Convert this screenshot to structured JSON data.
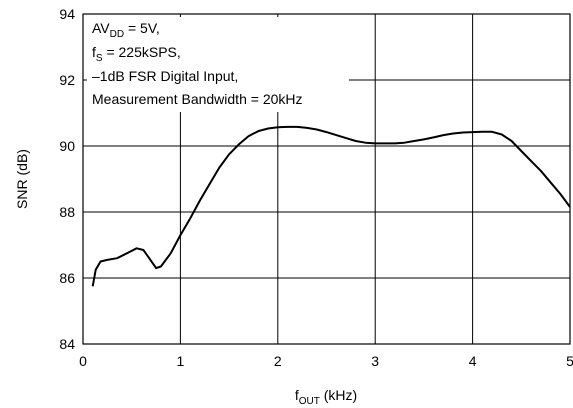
{
  "chart_data": {
    "type": "line",
    "title": "",
    "xlabel": {
      "base": "f",
      "sub": "OUT",
      "rest": " (kHz)"
    },
    "ylabel": "SNR (dB)",
    "xlim": [
      0,
      5
    ],
    "ylim": [
      84,
      94
    ],
    "xticks": [
      0,
      1,
      2,
      3,
      4,
      5
    ],
    "yticks": [
      84,
      86,
      88,
      90,
      92,
      94
    ],
    "grid": true,
    "annotations": [
      {
        "id": "avdd",
        "base": "AV",
        "sub": "DD",
        "rest": " = 5V,"
      },
      {
        "id": "fs",
        "base": "f",
        "sub": "S",
        "rest": " = 225kSPS,"
      },
      {
        "id": "input",
        "text": "–1dB FSR Digital Input,"
      },
      {
        "id": "bw",
        "text": "Measurement Bandwidth = 20kHz"
      }
    ],
    "series": [
      {
        "x": [
          0.1,
          0.13,
          0.18,
          0.25,
          0.35,
          0.45,
          0.55,
          0.62,
          0.68,
          0.75,
          0.8,
          0.85,
          0.9,
          1.0,
          1.1,
          1.2,
          1.3,
          1.4,
          1.5,
          1.6,
          1.7,
          1.8,
          1.9,
          2.0,
          2.1,
          2.2,
          2.3,
          2.4,
          2.5,
          2.6,
          2.7,
          2.8,
          2.9,
          3.0,
          3.1,
          3.2,
          3.3,
          3.4,
          3.5,
          3.6,
          3.7,
          3.8,
          3.9,
          4.0,
          4.1,
          4.2,
          4.3,
          4.4,
          4.5,
          4.6,
          4.7,
          4.8,
          4.9,
          5.0
        ],
        "y": [
          85.75,
          86.25,
          86.5,
          86.55,
          86.6,
          86.75,
          86.9,
          86.85,
          86.6,
          86.3,
          86.35,
          86.55,
          86.75,
          87.3,
          87.8,
          88.35,
          88.85,
          89.35,
          89.75,
          90.05,
          90.3,
          90.45,
          90.53,
          90.57,
          90.58,
          90.58,
          90.55,
          90.5,
          90.42,
          90.33,
          90.24,
          90.15,
          90.1,
          90.08,
          90.08,
          90.08,
          90.1,
          90.15,
          90.2,
          90.26,
          90.33,
          90.38,
          90.41,
          90.42,
          90.43,
          90.43,
          90.35,
          90.15,
          89.85,
          89.55,
          89.25,
          88.9,
          88.55,
          88.15
        ]
      }
    ]
  }
}
